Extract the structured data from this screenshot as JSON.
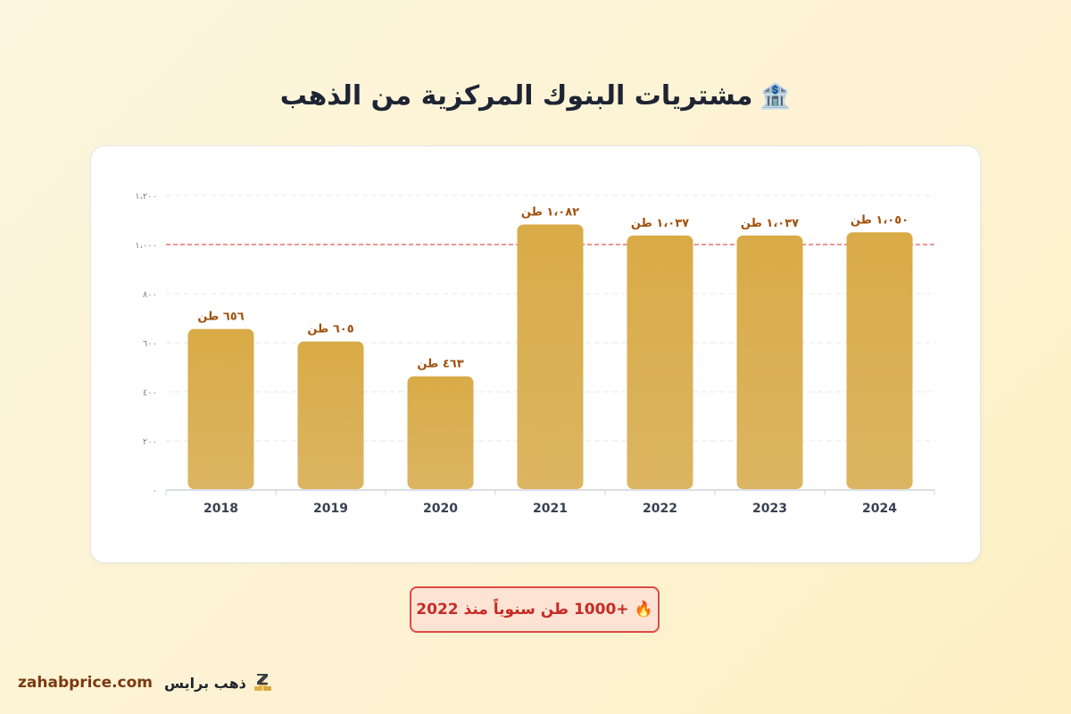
{
  "header": {
    "icon": "bank-icon",
    "icon_glyph": "🏦",
    "title": "مشتريات البنوك المركزية من الذهب"
  },
  "chart_data": {
    "type": "bar",
    "categories": [
      "2018",
      "2019",
      "2020",
      "2021",
      "2022",
      "2023",
      "2024"
    ],
    "values": [
      656,
      605,
      463,
      1082,
      1037,
      1037,
      1050
    ],
    "data_labels": [
      "٦٥٦ طن",
      "٦٠٥ طن",
      "٤٦٣ طن",
      "١،٠٨٢ طن",
      "١،٠٣٧ طن",
      "١،٠٣٧ طن",
      "١،٠٥٠ طن"
    ],
    "ylim": [
      0,
      1200
    ],
    "yticks": [
      0,
      200,
      400,
      600,
      800,
      1000,
      1200
    ],
    "ytick_labels": [
      "٠",
      "٢٠٠",
      "٤٠٠",
      "٦٠٠",
      "٨٠٠",
      "١،٠٠٠",
      "١،٢٠٠"
    ],
    "reference_line": 1000,
    "grid": true,
    "bar_color": "#dcb152",
    "label_color": "#a0520e",
    "reference_color": "#e05a4f"
  },
  "badge": {
    "icon": "fire-icon",
    "icon_glyph": "🔥",
    "text": "+1000 طن سنوياً منذ 2022"
  },
  "footer": {
    "website": "zahabprice.com",
    "brand_name": "ذهب برايس",
    "logo": "gold-bars-logo-icon"
  }
}
